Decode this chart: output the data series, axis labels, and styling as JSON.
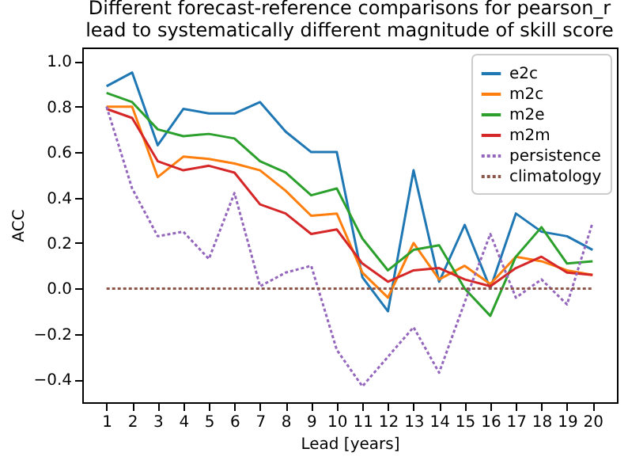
{
  "chart_data": {
    "type": "line",
    "title": "Different forecast-reference comparisons for pearson_r\nlead to systematically different magnitude of skill score",
    "xlabel": "Lead [years]",
    "ylabel": "ACC",
    "x": [
      1,
      2,
      3,
      4,
      5,
      6,
      7,
      8,
      9,
      10,
      11,
      12,
      13,
      14,
      15,
      16,
      17,
      18,
      19,
      20
    ],
    "xlim": [
      0.05,
      20.95
    ],
    "xticks": [
      1,
      2,
      3,
      4,
      5,
      6,
      7,
      8,
      9,
      10,
      11,
      12,
      13,
      14,
      15,
      16,
      17,
      18,
      19,
      20
    ],
    "ylim": [
      -0.5,
      1.06
    ],
    "yticks": [
      -0.4,
      -0.2,
      {
        "value": 0,
        "label": "0.0"
      },
      0.2,
      0.4,
      0.6,
      0.8,
      {
        "value": 1,
        "label": "1.0"
      }
    ],
    "grid": false,
    "legend": "top right",
    "series": [
      {
        "name": "e2c",
        "color": "#1f77b4",
        "line_style": "solid",
        "values": [
          0.89,
          0.95,
          0.63,
          0.79,
          0.77,
          0.77,
          0.82,
          0.69,
          0.6,
          0.6,
          0.05,
          -0.1,
          0.52,
          0.03,
          0.28,
          0.0,
          0.33,
          0.25,
          0.23,
          0.17
        ]
      },
      {
        "name": "m2c",
        "color": "#ff7f0e",
        "line_style": "solid",
        "values": [
          0.8,
          0.8,
          0.49,
          0.58,
          0.57,
          0.55,
          0.52,
          0.43,
          0.32,
          0.33,
          0.07,
          -0.04,
          0.2,
          0.04,
          0.1,
          0.02,
          0.14,
          0.12,
          0.08,
          0.06
        ]
      },
      {
        "name": "m2e",
        "color": "#2ca02c",
        "line_style": "solid",
        "values": [
          0.86,
          0.82,
          0.7,
          0.67,
          0.68,
          0.66,
          0.56,
          0.51,
          0.41,
          0.44,
          0.22,
          0.08,
          0.17,
          0.19,
          0.0,
          -0.12,
          0.14,
          0.27,
          0.11,
          0.12
        ]
      },
      {
        "name": "m2m",
        "color": "#d62728",
        "line_style": "solid",
        "values": [
          0.79,
          0.75,
          0.56,
          0.52,
          0.54,
          0.51,
          0.37,
          0.33,
          0.24,
          0.26,
          0.11,
          0.03,
          0.08,
          0.09,
          0.04,
          0.01,
          0.09,
          0.14,
          0.07,
          0.06
        ]
      },
      {
        "name": "persistence",
        "color": "#9467bd",
        "line_style": "dotted",
        "values": [
          0.8,
          0.44,
          0.23,
          0.25,
          0.13,
          0.42,
          0.01,
          0.07,
          0.1,
          -0.27,
          -0.43,
          -0.3,
          -0.17,
          -0.37,
          -0.06,
          0.24,
          -0.04,
          0.04,
          -0.07,
          0.29
        ]
      },
      {
        "name": "climatology",
        "color": "#8c564b",
        "line_style": "dotted",
        "values": [
          0,
          0,
          0,
          0,
          0,
          0,
          0,
          0,
          0,
          0,
          0,
          0,
          0,
          0,
          0,
          0,
          0,
          0,
          0,
          0
        ]
      }
    ]
  }
}
